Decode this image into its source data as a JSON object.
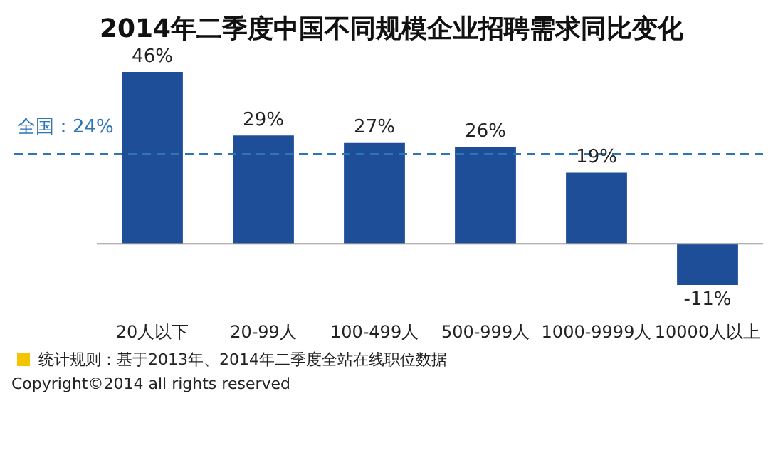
{
  "chart_data": {
    "type": "bar",
    "title": "2014年二季度中国不同规模企业招聘需求同比变化",
    "categories": [
      "20人以下",
      "20-99人",
      "100-499人",
      "500-999人",
      "1000-9999人",
      "10000人以上"
    ],
    "values": [
      46,
      29,
      27,
      26,
      19,
      -11
    ],
    "value_labels": [
      "46%",
      "29%",
      "27%",
      "26%",
      "19%",
      "-11%"
    ],
    "color": "#1f4e99",
    "grid": false,
    "legend": false,
    "ref_lines": [
      {
        "axis": "y",
        "value": 24,
        "label": "全国：24%",
        "color": "#2e75b6",
        "line_style": "dashed"
      }
    ],
    "annotations": [
      "统计规则：基于2013年、2014年二季度全站在线职位数据",
      "Copyright©2014 all rights reserved"
    ]
  }
}
